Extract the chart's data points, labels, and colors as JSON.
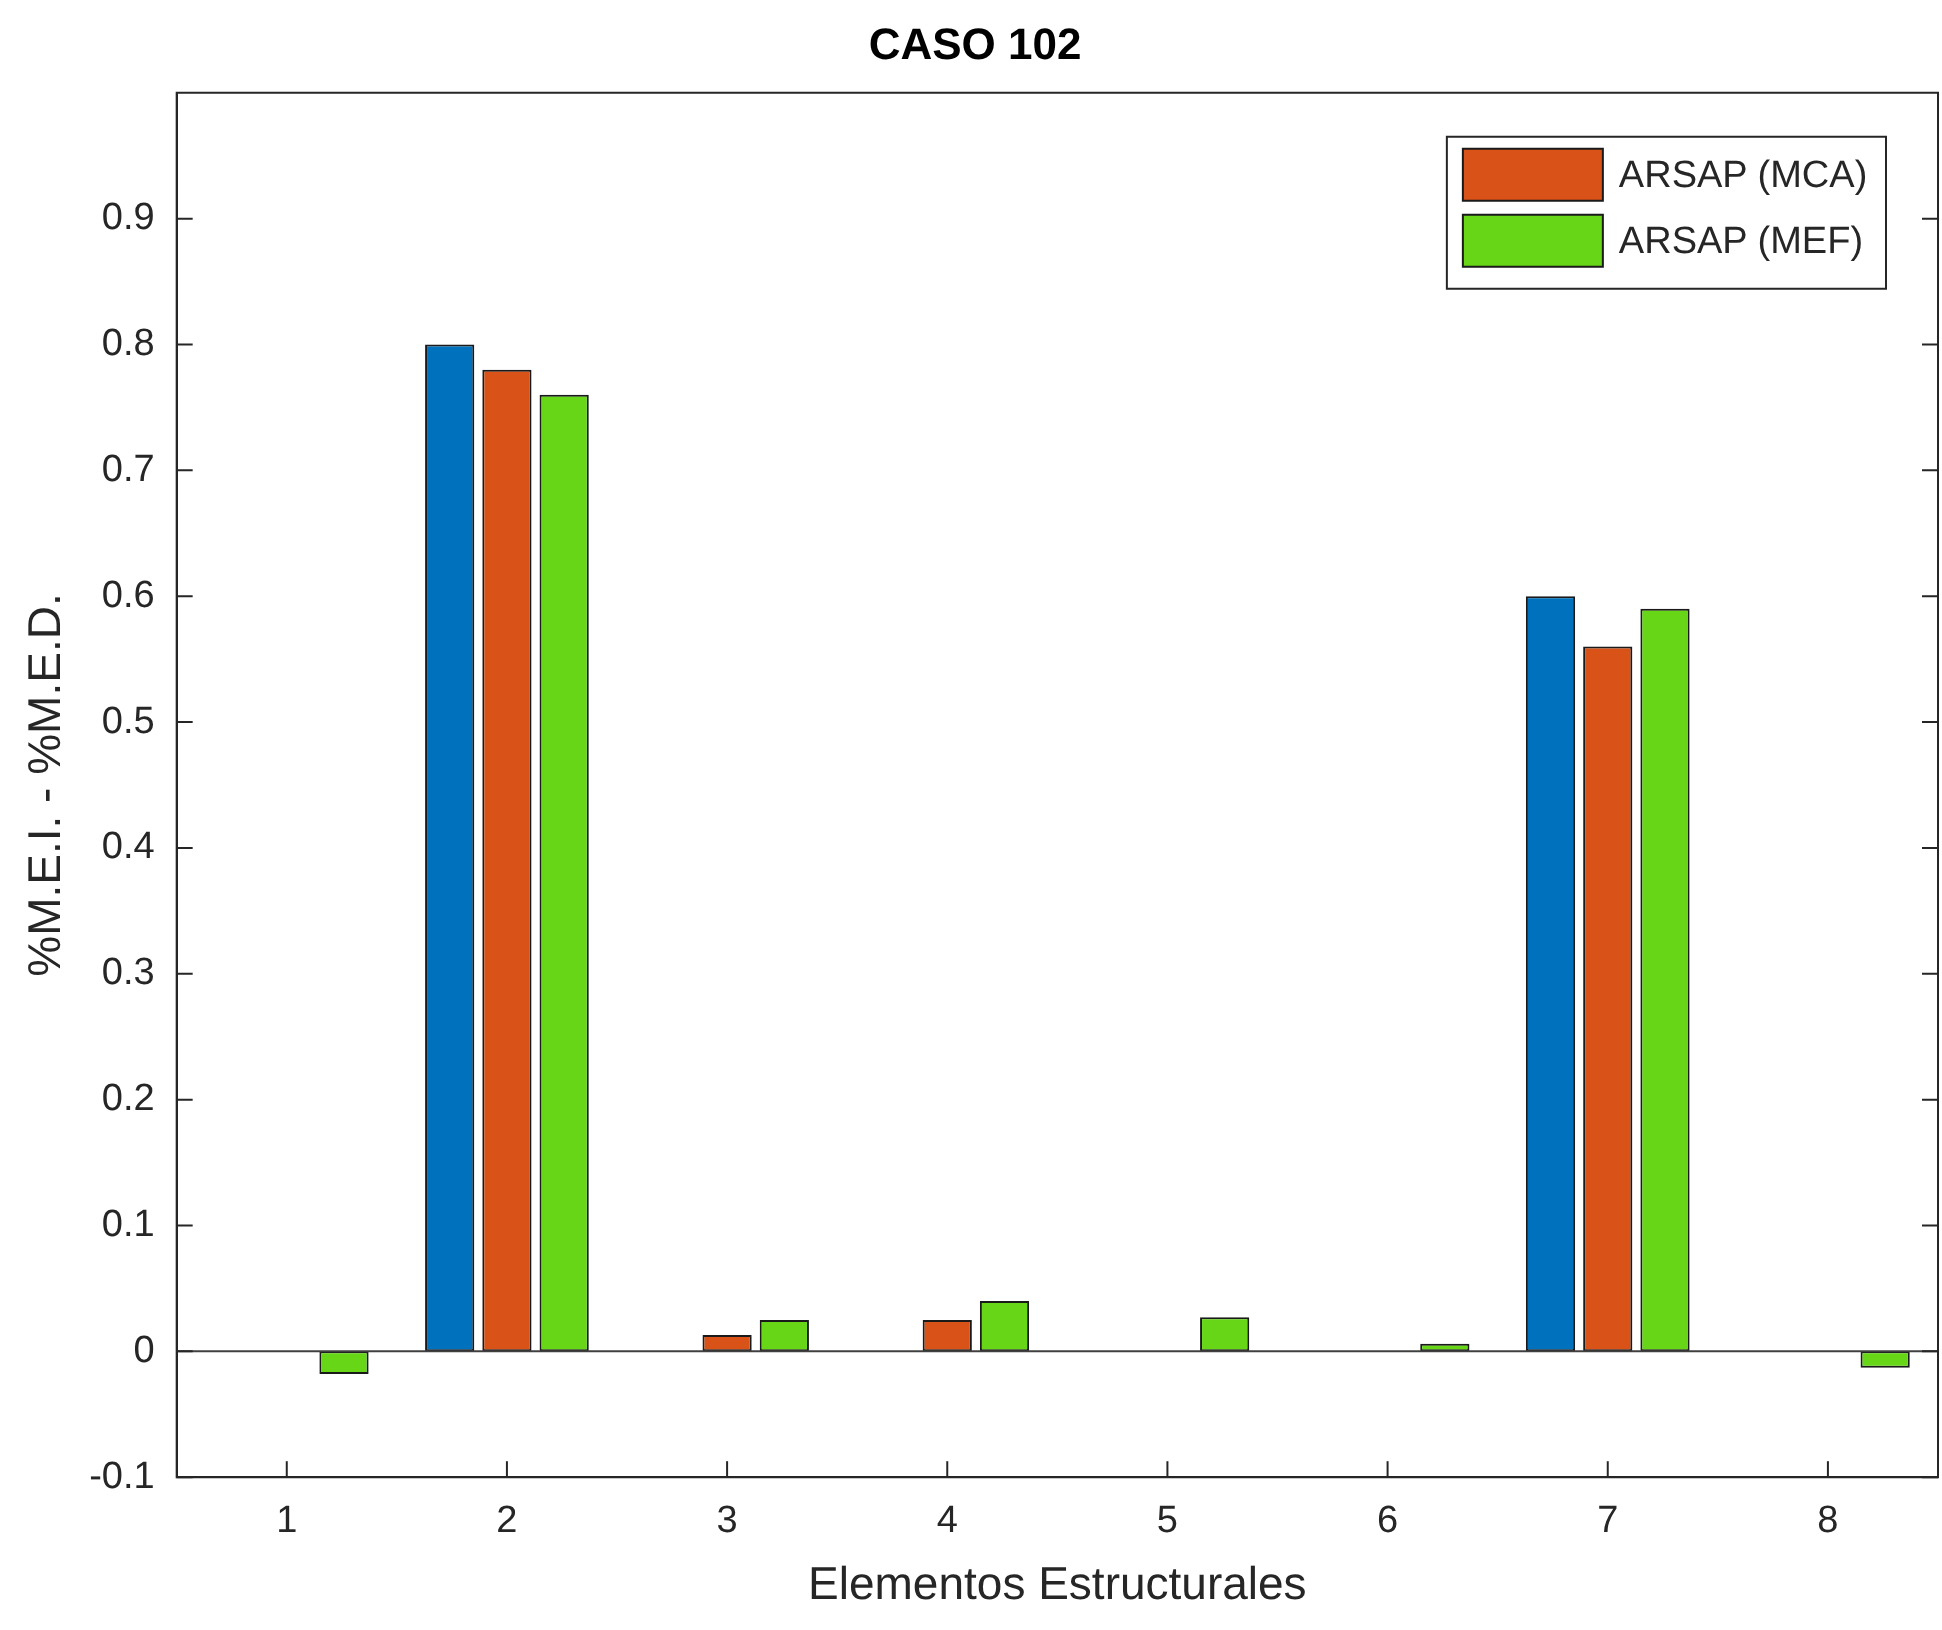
{
  "chart_data": {
    "type": "bar",
    "title": "CASO 102",
    "xlabel": "Elementos Estructurales",
    "ylabel": "%M.E.I. - %M.E.D.",
    "categories": [
      "1",
      "2",
      "3",
      "4",
      "5",
      "6",
      "7",
      "8"
    ],
    "series": [
      {
        "color": "#0072bd",
        "values": [
          0,
          0.8,
          0,
          0,
          0,
          0,
          0.6,
          0
        ]
      },
      {
        "name": "ARSAP (MCA)",
        "color": "#d95319",
        "values": [
          0,
          0.78,
          0.013,
          0.025,
          0,
          0,
          0.56,
          0
        ]
      },
      {
        "name": "ARSAP (MEF)",
        "color": "#66d617",
        "values": [
          -0.018,
          0.76,
          0.025,
          0.04,
          0.027,
          0.006,
          0.59,
          -0.013
        ]
      }
    ],
    "ylim": [
      -0.1,
      1
    ],
    "yticks": [
      -0.1,
      0,
      0.1,
      0.2,
      0.3,
      0.4,
      0.5,
      0.6,
      0.7,
      0.8,
      0.9
    ],
    "grid": false,
    "ref_lines": [
      {
        "axis": "y",
        "value": 0,
        "color": "#404040"
      }
    ],
    "legend": "top right"
  }
}
